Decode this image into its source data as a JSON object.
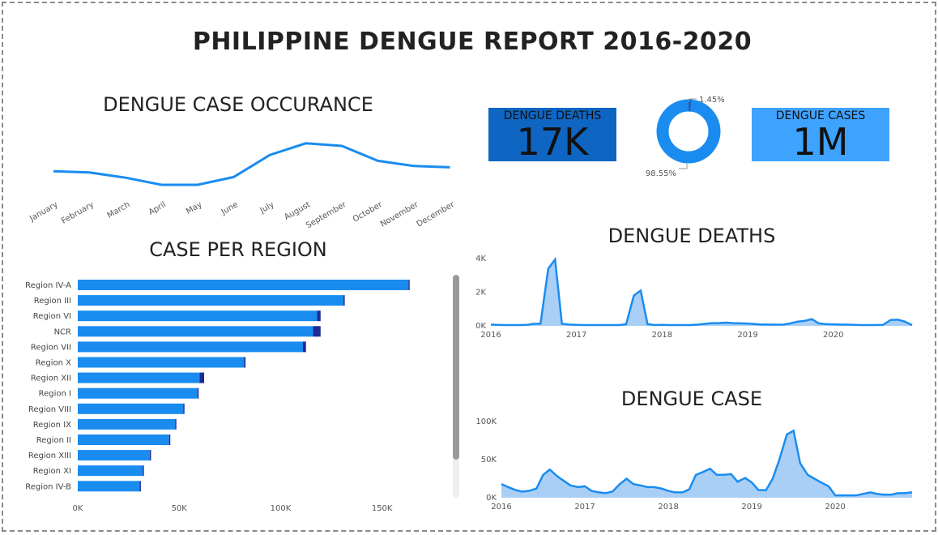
{
  "title": "PHILIPPINE DENGUE REPORT 2016-2020",
  "kpis": {
    "deaths": {
      "label": "DENGUE DEATHS",
      "value": "17K",
      "color": "#0f65c2"
    },
    "cases": {
      "label": "DENGUE CASES",
      "value": "1M",
      "color": "#3ea2ff"
    }
  },
  "colors": {
    "primary": "#1a8cf0",
    "dark": "#1f2a99",
    "area": "#a9cff7",
    "donut_dark": "#1f5fbf"
  },
  "chart_data": [
    {
      "id": "occurance",
      "type": "line",
      "title": "DENGUE CASE OCCURANCE",
      "categories": [
        "January",
        "February",
        "March",
        "April",
        "May",
        "June",
        "July",
        "August",
        "September",
        "October",
        "November",
        "December"
      ],
      "values": [
        81,
        79,
        71,
        60,
        60,
        72,
        106,
        124,
        120,
        97,
        89,
        87
      ],
      "ylim": [
        40,
        140
      ]
    },
    {
      "id": "region",
      "type": "bar",
      "title": "CASE PER REGION",
      "categories": [
        "Region IV-A",
        "Region III",
        "Region VI",
        "NCR",
        "Region VII",
        "Region X",
        "Region XII",
        "Region I",
        "Region VIII",
        "Region IX",
        "Region II",
        "Region XIII",
        "Region XI",
        "Region IV-B"
      ],
      "series": [
        {
          "values": [
            163000,
            131000,
            118000,
            116000,
            111000,
            82000,
            60000,
            59000,
            52000,
            48000,
            45000,
            35500,
            32000,
            30500
          ]
        },
        {
          "values": [
            600,
            500,
            1700,
            3700,
            1500,
            700,
            2300,
            300,
            400,
            400,
            400,
            600,
            400,
            200
          ]
        }
      ],
      "xticks": [
        "0K",
        "50K",
        "100K",
        "150K"
      ],
      "xlim": [
        0,
        180000
      ]
    },
    {
      "id": "donut",
      "type": "pie",
      "labels": [
        "1.45%",
        "98.55%"
      ],
      "values": [
        1.45,
        98.55
      ]
    },
    {
      "id": "deaths",
      "type": "area",
      "title": "DENGUE DEATHS",
      "x_years": [
        "2016",
        "2017",
        "2018",
        "2019",
        "2020"
      ],
      "yticks": [
        "0K",
        "2K",
        "4K"
      ],
      "ylim": [
        0,
        4000
      ],
      "xlim": [
        2016.0,
        2020.92
      ],
      "x": [
        2016.0,
        2016.08,
        2016.17,
        2016.25,
        2016.33,
        2016.42,
        2016.5,
        2016.58,
        2016.67,
        2016.75,
        2016.83,
        2016.92,
        2017.0,
        2017.08,
        2017.17,
        2017.25,
        2017.33,
        2017.42,
        2017.5,
        2017.58,
        2017.67,
        2017.75,
        2017.83,
        2017.92,
        2018.0,
        2018.08,
        2018.17,
        2018.25,
        2018.33,
        2018.42,
        2018.5,
        2018.58,
        2018.67,
        2018.75,
        2018.83,
        2018.92,
        2019.0,
        2019.08,
        2019.17,
        2019.25,
        2019.33,
        2019.42,
        2019.5,
        2019.58,
        2019.67,
        2019.75,
        2019.83,
        2019.92,
        2020.0,
        2020.08,
        2020.17,
        2020.25,
        2020.33,
        2020.42,
        2020.5,
        2020.58,
        2020.67,
        2020.75,
        2020.83,
        2020.92
      ],
      "values": [
        80,
        60,
        50,
        50,
        50,
        60,
        120,
        130,
        3400,
        3950,
        120,
        80,
        60,
        50,
        50,
        50,
        50,
        50,
        50,
        100,
        1800,
        2100,
        100,
        50,
        60,
        50,
        50,
        50,
        50,
        80,
        120,
        160,
        170,
        190,
        160,
        150,
        140,
        110,
        80,
        80,
        70,
        80,
        150,
        250,
        300,
        400,
        150,
        100,
        90,
        80,
        70,
        60,
        50,
        50,
        50,
        60,
        350,
        370,
        260,
        50
      ]
    },
    {
      "id": "cases",
      "type": "area",
      "title": "DENGUE CASE",
      "x_years": [
        "2016",
        "2017",
        "2018",
        "2019",
        "2020"
      ],
      "yticks": [
        "0K",
        "50K",
        "100K"
      ],
      "ylim": [
        0,
        100000
      ],
      "xlim": [
        2016.0,
        2020.92
      ],
      "x": [
        2016.0,
        2016.08,
        2016.17,
        2016.25,
        2016.33,
        2016.42,
        2016.5,
        2016.58,
        2016.67,
        2016.75,
        2016.83,
        2016.92,
        2017.0,
        2017.08,
        2017.17,
        2017.25,
        2017.33,
        2017.42,
        2017.5,
        2017.58,
        2017.67,
        2017.75,
        2017.83,
        2017.92,
        2018.0,
        2018.08,
        2018.17,
        2018.25,
        2018.33,
        2018.42,
        2018.5,
        2018.58,
        2018.67,
        2018.75,
        2018.83,
        2018.92,
        2019.0,
        2019.08,
        2019.17,
        2019.25,
        2019.33,
        2019.42,
        2019.5,
        2019.58,
        2019.67,
        2019.75,
        2019.83,
        2019.92,
        2020.0,
        2020.08,
        2020.17,
        2020.25,
        2020.33,
        2020.42,
        2020.5,
        2020.58,
        2020.67,
        2020.75,
        2020.83,
        2020.92
      ],
      "values": [
        18000,
        14000,
        10000,
        8000,
        9000,
        12000,
        30000,
        37000,
        28000,
        22000,
        16000,
        14000,
        15000,
        9000,
        7000,
        6000,
        8000,
        18000,
        25000,
        18000,
        16000,
        14000,
        14000,
        12000,
        9000,
        7000,
        7000,
        11000,
        30000,
        34000,
        38000,
        30000,
        30000,
        31000,
        21000,
        26000,
        20000,
        10000,
        10000,
        25000,
        50000,
        83000,
        88000,
        45000,
        30000,
        25000,
        20000,
        15000,
        3000,
        3000,
        3000,
        3000,
        5000,
        7000,
        5000,
        4000,
        4000,
        6000,
        6000,
        7000
      ]
    }
  ]
}
